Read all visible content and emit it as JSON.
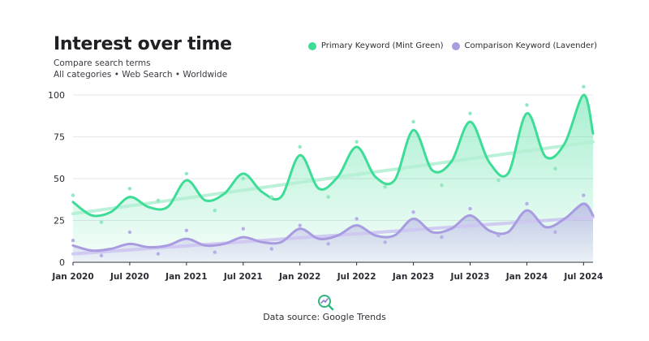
{
  "header": {
    "title": "Interest over time",
    "subtitle": "Compare search terms",
    "filters": "All categories • Web Search • Worldwide"
  },
  "legend": {
    "items": [
      {
        "label": "Primary Keyword (Mint Green)",
        "color": "#3ddc97"
      },
      {
        "label": "Comparison Keyword (Lavender)",
        "color": "#a89be0"
      }
    ]
  },
  "footer": {
    "source": "Data source: Google Trends",
    "logo_icon": "magnifier-trend-icon"
  },
  "chart_data": {
    "type": "line",
    "title": "Interest over time",
    "xlabel": "",
    "ylabel": "",
    "xlim": [
      "2020-01",
      "2024-08"
    ],
    "ylim": [
      0,
      100
    ],
    "x_ticks": [
      "Jan 2020",
      "Jul 2020",
      "Jan 2021",
      "Jul 2021",
      "Jan 2022",
      "Jul 2022",
      "Jan 2023",
      "Jul 2023",
      "Jan 2024",
      "Jul 2024"
    ],
    "y_ticks": [
      0,
      25,
      50,
      75,
      100
    ],
    "grid": true,
    "legend_position": "top-right",
    "series": [
      {
        "name": "Primary Keyword (Mint Green)",
        "color": "#3ddc97",
        "x": [
          "2020-01",
          "2020-03",
          "2020-05",
          "2020-07",
          "2020-09",
          "2020-11",
          "2021-01",
          "2021-03",
          "2021-05",
          "2021-07",
          "2021-09",
          "2021-11",
          "2022-01",
          "2022-03",
          "2022-05",
          "2022-07",
          "2022-09",
          "2022-11",
          "2023-01",
          "2023-03",
          "2023-05",
          "2023-07",
          "2023-09",
          "2023-11",
          "2024-01",
          "2024-03",
          "2024-05",
          "2024-07",
          "2024-08"
        ],
        "values": [
          36,
          28,
          30,
          39,
          33,
          33,
          49,
          37,
          41,
          53,
          42,
          39,
          64,
          44,
          51,
          69,
          51,
          49,
          79,
          55,
          60,
          84,
          60,
          53,
          89,
          63,
          71,
          100,
          77
        ],
        "trend": [
          29,
          72
        ],
        "samples": {
          "x": [
            "2020-01",
            "2020-04",
            "2020-07",
            "2020-10",
            "2021-01",
            "2021-04",
            "2021-07",
            "2021-10",
            "2022-01",
            "2022-04",
            "2022-07",
            "2022-10",
            "2023-01",
            "2023-04",
            "2023-07",
            "2023-10",
            "2024-01",
            "2024-04",
            "2024-07"
          ],
          "values": [
            40,
            24,
            44,
            37,
            53,
            31,
            50,
            39,
            69,
            39,
            72,
            45,
            84,
            46,
            89,
            49,
            94,
            56,
            105
          ]
        }
      },
      {
        "name": "Comparison Keyword (Lavender)",
        "color": "#a89be0",
        "x": [
          "2020-01",
          "2020-03",
          "2020-05",
          "2020-07",
          "2020-09",
          "2020-11",
          "2021-01",
          "2021-03",
          "2021-05",
          "2021-07",
          "2021-09",
          "2021-11",
          "2022-01",
          "2022-03",
          "2022-05",
          "2022-07",
          "2022-09",
          "2022-11",
          "2023-01",
          "2023-03",
          "2023-05",
          "2023-07",
          "2023-09",
          "2023-11",
          "2024-01",
          "2024-03",
          "2024-05",
          "2024-07",
          "2024-08"
        ],
        "values": [
          10,
          7,
          8,
          11,
          9,
          10,
          14,
          10,
          11,
          15,
          12,
          12,
          20,
          14,
          16,
          22,
          16,
          16,
          26,
          18,
          20,
          28,
          19,
          18,
          31,
          21,
          26,
          35,
          28
        ],
        "trend": [
          5,
          27
        ],
        "samples": {
          "x": [
            "2020-01",
            "2020-04",
            "2020-07",
            "2020-10",
            "2021-01",
            "2021-04",
            "2021-07",
            "2021-10",
            "2022-01",
            "2022-04",
            "2022-07",
            "2022-10",
            "2023-01",
            "2023-04",
            "2023-07",
            "2023-10",
            "2024-01",
            "2024-04",
            "2024-07"
          ],
          "values": [
            13,
            4,
            18,
            5,
            19,
            6,
            20,
            8,
            22,
            11,
            26,
            12,
            30,
            15,
            32,
            16,
            35,
            18,
            40
          ]
        }
      }
    ]
  }
}
